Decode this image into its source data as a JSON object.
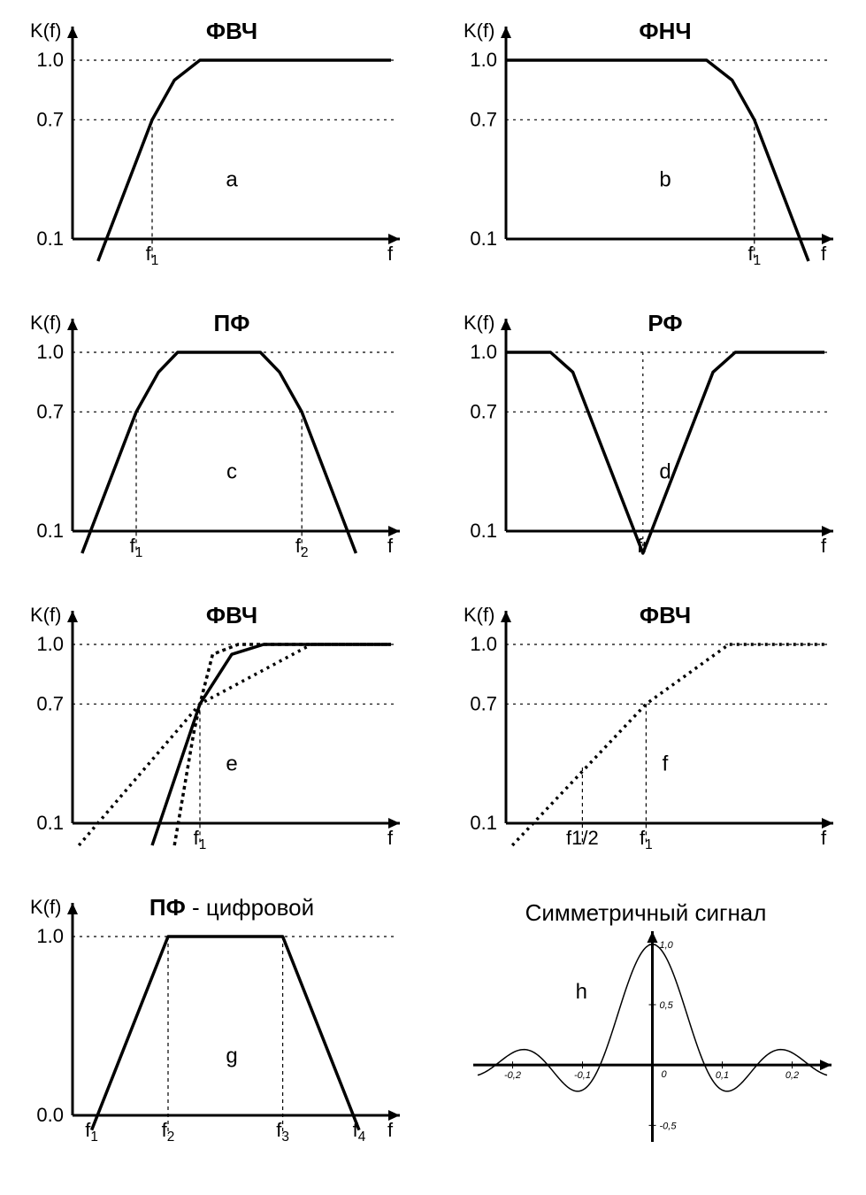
{
  "global": {
    "bg": "#ffffff",
    "stroke": "#000000",
    "axis_width": 3,
    "curve_width": 3.5,
    "dash": "4,4",
    "dot": "3,5",
    "ylabel": "K(f)",
    "xlabel": "f",
    "yticks": [
      {
        "label": "1.0",
        "v": 1.0
      },
      {
        "label": "0.7",
        "v": 0.7
      },
      {
        "label": "0.1",
        "v": 0.1
      }
    ],
    "title_fontsize": 26,
    "axis_fontsize": 22,
    "tick_fontsize": 22,
    "tag_fontsize": 24
  },
  "panels": {
    "a": {
      "title": "ФВЧ",
      "tag": "a",
      "xmarks": [
        {
          "label": "f1",
          "sub": "1",
          "x": 0.25
        }
      ],
      "curves": [
        {
          "style": "solid",
          "pts": [
            [
              0.08,
              -0.05
            ],
            [
              0.25,
              0.7
            ],
            [
              0.32,
              0.9
            ],
            [
              0.4,
              1.0
            ],
            [
              1.0,
              1.0
            ]
          ]
        }
      ],
      "guides": [
        {
          "type": "h",
          "v": 1.0,
          "style": "dot"
        },
        {
          "type": "h",
          "v": 0.7,
          "style": "dot"
        },
        {
          "type": "v",
          "x": 0.25,
          "from": 0,
          "to": 0.7,
          "style": "dash"
        }
      ]
    },
    "b": {
      "title": "ФНЧ",
      "tag": "b",
      "xmarks": [
        {
          "label": "f1",
          "sub": "1",
          "x": 0.78
        }
      ],
      "curves": [
        {
          "style": "solid",
          "pts": [
            [
              0.0,
              1.0
            ],
            [
              0.63,
              1.0
            ],
            [
              0.71,
              0.9
            ],
            [
              0.78,
              0.7
            ],
            [
              0.95,
              -0.05
            ]
          ]
        }
      ],
      "guides": [
        {
          "type": "h",
          "v": 1.0,
          "style": "dot"
        },
        {
          "type": "h",
          "v": 0.7,
          "style": "dot"
        },
        {
          "type": "v",
          "x": 0.78,
          "from": 0,
          "to": 0.7,
          "style": "dash"
        }
      ]
    },
    "c": {
      "title": "ПФ",
      "tag": "c",
      "xmarks": [
        {
          "label": "f1",
          "sub": "1",
          "x": 0.2
        },
        {
          "label": "f2",
          "sub": "2",
          "x": 0.72
        }
      ],
      "curves": [
        {
          "style": "solid",
          "pts": [
            [
              0.03,
              -0.05
            ],
            [
              0.2,
              0.7
            ],
            [
              0.27,
              0.9
            ],
            [
              0.33,
              1.0
            ],
            [
              0.59,
              1.0
            ],
            [
              0.65,
              0.9
            ],
            [
              0.72,
              0.7
            ],
            [
              0.89,
              -0.05
            ]
          ]
        }
      ],
      "guides": [
        {
          "type": "h",
          "v": 1.0,
          "style": "dot"
        },
        {
          "type": "h",
          "v": 0.7,
          "style": "dot"
        },
        {
          "type": "v",
          "x": 0.2,
          "from": 0,
          "to": 0.7,
          "style": "dash"
        },
        {
          "type": "v",
          "x": 0.72,
          "from": 0,
          "to": 0.7,
          "style": "dash"
        }
      ]
    },
    "d": {
      "title": "РФ",
      "tag": "d",
      "xmarks": [
        {
          "label": "fr",
          "sub": null,
          "x": 0.43,
          "plain": true
        }
      ],
      "curves": [
        {
          "style": "solid",
          "pts": [
            [
              0.0,
              1.0
            ],
            [
              0.14,
              1.0
            ],
            [
              0.21,
              0.9
            ],
            [
              0.43,
              -0.05
            ],
            [
              0.65,
              0.9
            ],
            [
              0.72,
              1.0
            ],
            [
              1.0,
              1.0
            ]
          ]
        }
      ],
      "guides": [
        {
          "type": "h",
          "v": 1.0,
          "style": "dot"
        },
        {
          "type": "h",
          "v": 0.7,
          "style": "dot"
        },
        {
          "type": "v",
          "x": 0.43,
          "from": 0,
          "to": 1.0,
          "style": "dot"
        }
      ]
    },
    "e": {
      "title": "ФВЧ",
      "tag": "e",
      "xmarks": [
        {
          "label": "f1",
          "sub": "1",
          "x": 0.4
        }
      ],
      "curves": [
        {
          "style": "dot",
          "pts": [
            [
              0.02,
              -0.05
            ],
            [
              0.4,
              0.7
            ],
            [
              0.75,
              1.0
            ],
            [
              1.0,
              1.0
            ]
          ]
        },
        {
          "style": "solid",
          "pts": [
            [
              0.25,
              -0.05
            ],
            [
              0.4,
              0.7
            ],
            [
              0.5,
              0.95
            ],
            [
              0.6,
              1.0
            ],
            [
              1.0,
              1.0
            ]
          ]
        },
        {
          "style": "dash",
          "pts": [
            [
              0.32,
              -0.05
            ],
            [
              0.38,
              0.55
            ],
            [
              0.4,
              0.7
            ],
            [
              0.44,
              0.95
            ],
            [
              0.52,
              1.0
            ],
            [
              1.0,
              1.0
            ]
          ]
        }
      ],
      "guides": [
        {
          "type": "h",
          "v": 1.0,
          "style": "dot"
        },
        {
          "type": "h",
          "v": 0.7,
          "style": "dot"
        },
        {
          "type": "v",
          "x": 0.4,
          "from": 0,
          "to": 0.7,
          "style": "dash"
        }
      ]
    },
    "f": {
      "title": "ФВЧ",
      "tag": "f",
      "xmarks": [
        {
          "label": "f1/2",
          "sub": null,
          "x": 0.24,
          "plain": true
        },
        {
          "label": "f1",
          "sub": "1",
          "x": 0.44
        }
      ],
      "curves": [
        {
          "style": "dot",
          "pts": [
            [
              0.02,
              -0.05
            ],
            [
              0.44,
              0.7
            ],
            [
              0.7,
              1.0
            ],
            [
              1.0,
              1.0
            ]
          ]
        }
      ],
      "guides": [
        {
          "type": "h",
          "v": 1.0,
          "style": "dot"
        },
        {
          "type": "h",
          "v": 0.7,
          "style": "dot"
        },
        {
          "type": "v",
          "x": 0.24,
          "from": 0,
          "to": 0.38,
          "style": "dash"
        },
        {
          "type": "v",
          "x": 0.44,
          "from": 0,
          "to": 0.7,
          "style": "dash"
        }
      ]
    },
    "g": {
      "title": "ПФ",
      "title_suffix": " - цифровой",
      "tag": "g",
      "yticks": [
        {
          "label": "1.0",
          "v": 1.0
        },
        {
          "label": "0.0",
          "v": 0.0
        }
      ],
      "xmarks": [
        {
          "label": "f1",
          "sub": "1",
          "x": 0.06
        },
        {
          "label": "f2",
          "sub": "2",
          "x": 0.3
        },
        {
          "label": "f3",
          "sub": "3",
          "x": 0.66
        },
        {
          "label": "f4",
          "sub": "4",
          "x": 0.9
        }
      ],
      "curves": [
        {
          "style": "solid",
          "pts": [
            [
              0.06,
              0.0
            ],
            [
              0.3,
              1.0
            ],
            [
              0.66,
              1.0
            ],
            [
              0.9,
              0.0
            ]
          ]
        }
      ],
      "guides": [
        {
          "type": "h",
          "v": 1.0,
          "style": "dot"
        },
        {
          "type": "v",
          "x": 0.3,
          "from": 0,
          "to": 1.0,
          "style": "dash"
        },
        {
          "type": "v",
          "x": 0.66,
          "from": 0,
          "to": 1.0,
          "style": "dash"
        }
      ]
    },
    "h": {
      "kind": "signal",
      "title": "Симметричный сигнал",
      "tag": "h",
      "title_fontsize": 26,
      "xlim": [
        -0.25,
        0.25
      ],
      "ylim": [
        -0.6,
        1.05
      ],
      "xticks": [
        {
          "label": "-0,2",
          "x": -0.2
        },
        {
          "label": "-0,1",
          "x": -0.1
        },
        {
          "label": "0",
          "x": 0.0
        },
        {
          "label": "0,1",
          "x": 0.1
        },
        {
          "label": "0,2",
          "x": 0.2
        }
      ],
      "yticks": [
        {
          "label": "1,0",
          "v": 1.0
        },
        {
          "label": "0,5",
          "v": 0.5
        },
        {
          "label": "-0,5",
          "v": -0.5
        }
      ],
      "curve_width": 1.5,
      "sinc": {
        "k": 42,
        "samples": 240
      }
    }
  }
}
